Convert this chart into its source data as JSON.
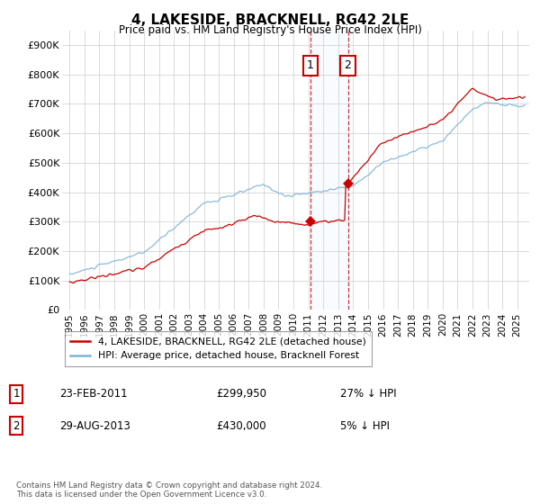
{
  "title": "4, LAKESIDE, BRACKNELL, RG42 2LE",
  "subtitle": "Price paid vs. HM Land Registry's House Price Index (HPI)",
  "legend_line1": "4, LAKESIDE, BRACKNELL, RG42 2LE (detached house)",
  "legend_line2": "HPI: Average price, detached house, Bracknell Forest",
  "annotation1_date": "23-FEB-2011",
  "annotation1_price": "£299,950",
  "annotation1_hpi": "27% ↓ HPI",
  "annotation2_date": "29-AUG-2013",
  "annotation2_price": "£430,000",
  "annotation2_hpi": "5% ↓ HPI",
  "footer": "Contains HM Land Registry data © Crown copyright and database right 2024.\nThis data is licensed under the Open Government Licence v3.0.",
  "hpi_color": "#7eb3d8",
  "price_color": "#cc0000",
  "sale_marker_color": "#cc0000",
  "annotation_box_color": "#cc0000",
  "highlight_color": "#ddeeff",
  "ylim": [
    0,
    950000
  ],
  "yticks": [
    0,
    100000,
    200000,
    300000,
    400000,
    500000,
    600000,
    700000,
    800000,
    900000
  ],
  "ytick_labels": [
    "£0",
    "£100K",
    "£200K",
    "£300K",
    "£400K",
    "£500K",
    "£600K",
    "£700K",
    "£800K",
    "£900K"
  ],
  "sale1_x": 2011.15,
  "sale1_y": 299950,
  "sale2_x": 2013.65,
  "sale2_y": 430000,
  "highlight_start": 2011.15,
  "highlight_end": 2013.65,
  "xmin": 1994.5,
  "xmax": 2025.8
}
